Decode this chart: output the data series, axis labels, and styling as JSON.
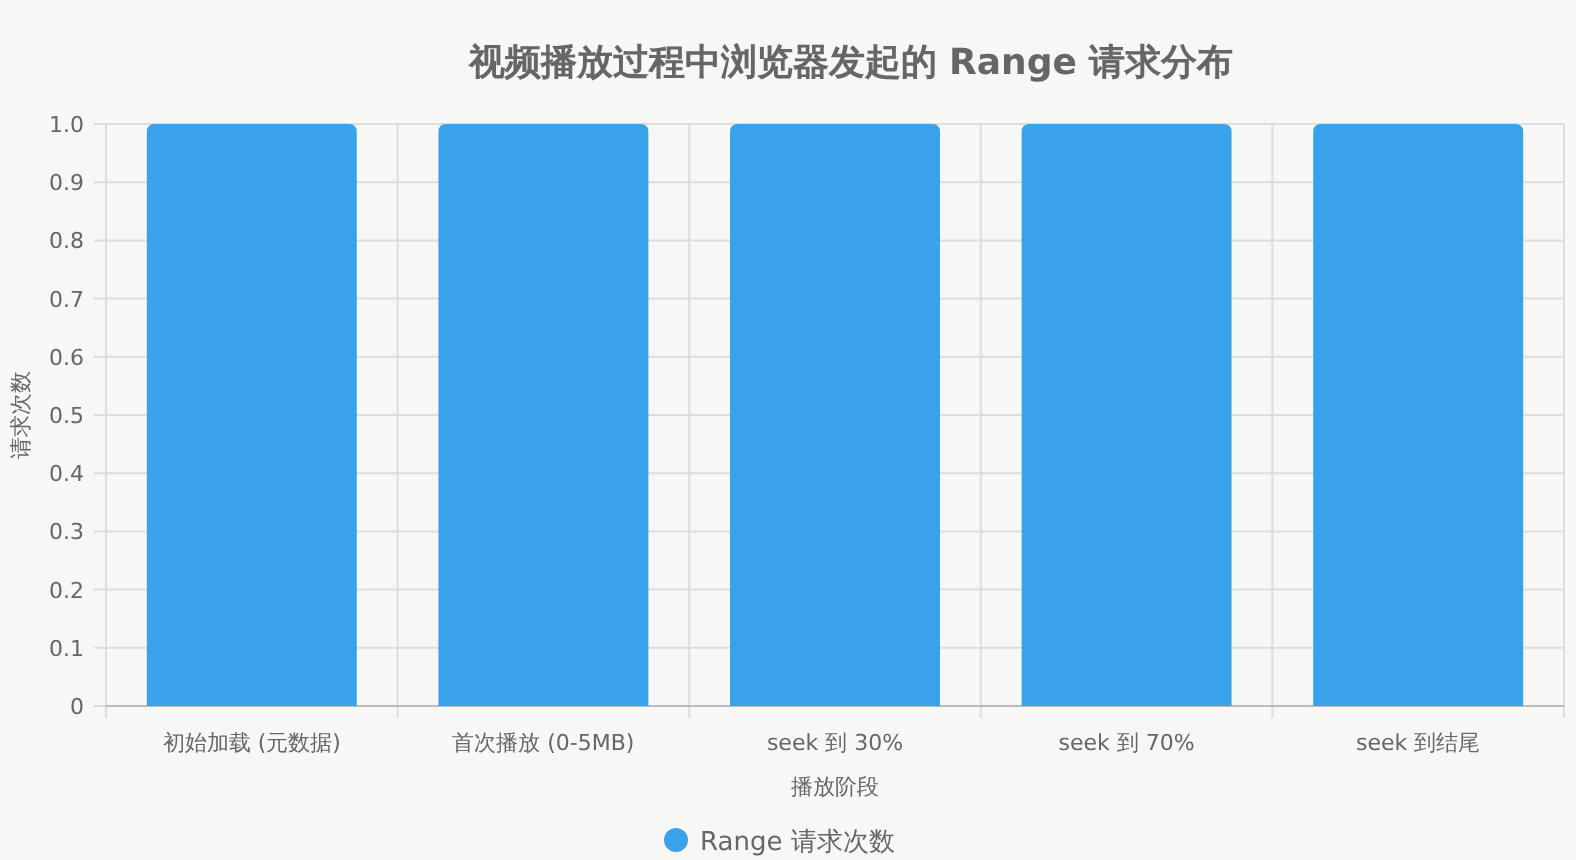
{
  "chart_data": {
    "type": "bar",
    "title": "视频播放过程中浏览器发起的 Range 请求分布",
    "xlabel": "播放阶段",
    "ylabel": "请求次数",
    "categories": [
      "初始加载 (元数据)",
      "首次播放 (0-5MB)",
      "seek 到 30%",
      "seek 到 70%",
      "seek 到结尾"
    ],
    "series": [
      {
        "name": "Range 请求次数",
        "color": "#38a2ea",
        "values": [
          1,
          1,
          1,
          1,
          1
        ]
      }
    ],
    "ylim": [
      0,
      1
    ],
    "yticks": [
      0,
      0.1,
      0.2,
      0.3,
      0.4,
      0.5,
      0.6,
      0.7,
      0.8,
      0.9,
      {
        "value": 1,
        "label": "1.0"
      }
    ],
    "grid": true,
    "legend": "bottom"
  }
}
